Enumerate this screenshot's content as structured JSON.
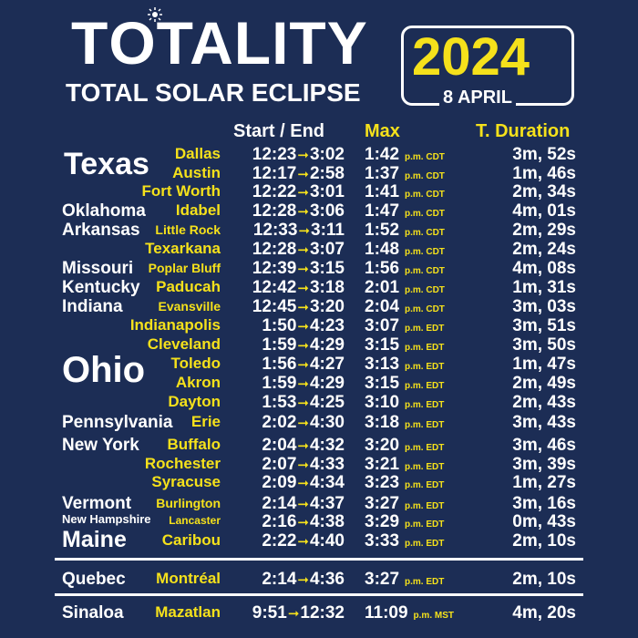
{
  "header": {
    "title_left": "T",
    "title_o": "O",
    "title_right": "TALITY",
    "year": "2024",
    "subtitle": "TOTAL SOLAR ECLIPSE",
    "date": "8 APRIL"
  },
  "columns": {
    "start_end": "Start / End",
    "max": "Max",
    "duration": "T. Duration"
  },
  "arrow_glyph": "➞",
  "colors": {
    "background": "#1c2d55",
    "accent": "#f5e11b",
    "text": "#ffffff"
  },
  "big_states": {
    "texas": "Texas",
    "ohio": "Ohio"
  },
  "rows": [
    {
      "state": "",
      "city": "Dallas",
      "start": "12:23",
      "end": "3:02",
      "max": "1:42",
      "tz": "p.m. CDT",
      "duration": "3m, 52s"
    },
    {
      "state": "",
      "city": "Austin",
      "start": "12:17",
      "end": "2:58",
      "max": "1:37",
      "tz": "p.m. CDT",
      "duration": "1m, 46s"
    },
    {
      "state": "",
      "city": "Fort Worth",
      "start": "12:22",
      "end": "3:01",
      "max": "1:41",
      "tz": "p.m. CDT",
      "duration": "2m, 34s"
    },
    {
      "state": "Oklahoma",
      "city": "Idabel",
      "start": "12:28",
      "end": "3:06",
      "max": "1:47",
      "tz": "p.m. CDT",
      "duration": "4m, 01s"
    },
    {
      "state": "Arkansas",
      "city": "Little Rock",
      "start": "12:33",
      "end": "3:11",
      "max": "1:52",
      "tz": "p.m. CDT",
      "duration": "2m, 29s"
    },
    {
      "state": "",
      "city": "Texarkana",
      "start": "12:28",
      "end": "3:07",
      "max": "1:48",
      "tz": "p.m. CDT",
      "duration": "2m, 24s"
    },
    {
      "state": "Missouri",
      "city": "Poplar Bluff",
      "start": "12:39",
      "end": "3:15",
      "max": "1:56",
      "tz": "p.m. CDT",
      "duration": "4m, 08s"
    },
    {
      "state": "Kentucky",
      "city": "Paducah",
      "start": "12:42",
      "end": "3:18",
      "max": "2:01",
      "tz": "p.m. CDT",
      "duration": "1m, 31s"
    },
    {
      "state": "Indiana",
      "city": "Evansville",
      "start": "12:45",
      "end": "3:20",
      "max": "2:04",
      "tz": "p.m. CDT",
      "duration": "3m, 03s"
    },
    {
      "state": "",
      "city": "Indianapolis",
      "start": "1:50",
      "end": "4:23",
      "max": "3:07",
      "tz": "p.m. EDT",
      "duration": "3m, 51s"
    },
    {
      "state": "",
      "city": "Cleveland",
      "start": "1:59",
      "end": "4:29",
      "max": "3:15",
      "tz": "p.m. EDT",
      "duration": "3m, 50s"
    },
    {
      "state": "",
      "city": "Toledo",
      "start": "1:56",
      "end": "4:27",
      "max": "3:13",
      "tz": "p.m. EDT",
      "duration": "1m, 47s"
    },
    {
      "state": "",
      "city": "Akron",
      "start": "1:59",
      "end": "4:29",
      "max": "3:15",
      "tz": "p.m. EDT",
      "duration": "2m, 49s"
    },
    {
      "state": "",
      "city": "Dayton",
      "start": "1:53",
      "end": "4:25",
      "max": "3:10",
      "tz": "p.m. EDT",
      "duration": "2m, 43s"
    },
    {
      "state": "Pennsylvania",
      "city": "Erie",
      "start": "2:02",
      "end": "4:30",
      "max": "3:18",
      "tz": "p.m. EDT",
      "duration": "3m, 43s"
    },
    {
      "state": "New York",
      "city": "Buffalo",
      "start": "2:04",
      "end": "4:32",
      "max": "3:20",
      "tz": "p.m. EDT",
      "duration": "3m, 46s"
    },
    {
      "state": "",
      "city": "Rochester",
      "start": "2:07",
      "end": "4:33",
      "max": "3:21",
      "tz": "p.m. EDT",
      "duration": "3m, 39s"
    },
    {
      "state": "",
      "city": "Syracuse",
      "start": "2:09",
      "end": "4:34",
      "max": "3:23",
      "tz": "p.m. EDT",
      "duration": "1m, 27s"
    },
    {
      "state": "Vermont",
      "city": "Burlington",
      "start": "2:14",
      "end": "4:37",
      "max": "3:27",
      "tz": "p.m. EDT",
      "duration": "3m, 16s"
    },
    {
      "state": "New Hampshire",
      "city": "Lancaster",
      "start": "2:16",
      "end": "4:38",
      "max": "3:29",
      "tz": "p.m. EDT",
      "duration": "0m, 43s"
    },
    {
      "state": "Maine",
      "city": "Caribou",
      "start": "2:22",
      "end": "4:40",
      "max": "3:33",
      "tz": "p.m. EDT",
      "duration": "2m, 10s"
    },
    {
      "state": "Quebec",
      "city": "Montréal",
      "start": "2:14",
      "end": "4:36",
      "max": "3:27",
      "tz": "p.m. EDT",
      "duration": "2m, 10s"
    },
    {
      "state": "Sinaloa",
      "city": "Mazatlan",
      "start": "9:51",
      "end": "12:32",
      "max": "11:09",
      "tz": "p.m. MST",
      "duration": "4m, 20s"
    }
  ]
}
